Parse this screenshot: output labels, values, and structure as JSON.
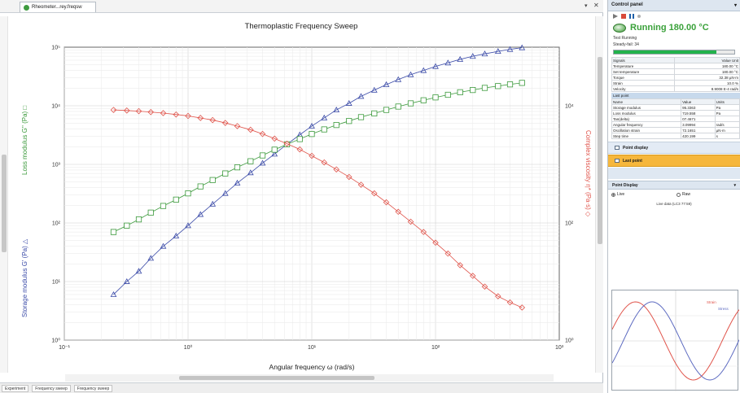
{
  "doc": {
    "tab_title": "Rheometer...rey.freqsw",
    "close_glyph": "✕",
    "pin_glyph": "▾",
    "sheet_tabs": [
      "Experiment",
      "Frequency sweep",
      "Frequency sweep"
    ]
  },
  "chart_data": {
    "type": "scatter",
    "title": "Thermoplastic Frequency Sweep",
    "xlabel": "Angular frequency ω (rad/s)",
    "y_left_label_storage": "Storage modulus G' (Pa) △",
    "y_left_label_loss": "Loss modulus G'' (Pa) □",
    "y_right_label": "Complex viscosity η* (Pa·s) ◇",
    "x_scale": "log",
    "y_scale": "log",
    "xlim": [
      0.1,
      1000
    ],
    "ylim_left": [
      1,
      100000
    ],
    "ylim_right": [
      1,
      100000
    ],
    "x_ticks": [
      "10⁻¹",
      "10⁰",
      "10¹",
      "10²",
      "10³"
    ],
    "y_left_ticks": [
      "10⁰",
      "10¹",
      "10²",
      "10³",
      "10⁴",
      "10⁵"
    ],
    "y_right_ticks": [
      "10⁰",
      "10²",
      "10⁴"
    ],
    "grid": true,
    "series": [
      {
        "id": "storage",
        "axis": "left",
        "marker": "triangle",
        "color": "#3b4ba8",
        "x": [
          0.25,
          0.32,
          0.4,
          0.5,
          0.63,
          0.8,
          1.0,
          1.26,
          1.58,
          2.0,
          2.5,
          3.2,
          4.0,
          5.0,
          6.3,
          8.0,
          10,
          12.6,
          15.8,
          20,
          25,
          32,
          40,
          50,
          63,
          80,
          100,
          126,
          158,
          200,
          250,
          320,
          400,
          500
        ],
        "y": [
          6,
          10,
          15,
          25,
          40,
          60,
          90,
          140,
          210,
          320,
          480,
          720,
          1050,
          1500,
          2200,
          3200,
          4500,
          6200,
          8500,
          11000,
          14500,
          18500,
          23000,
          28000,
          34000,
          40000,
          47000,
          54000,
          62000,
          70000,
          77000,
          85000,
          92000,
          98000
        ]
      },
      {
        "id": "loss",
        "axis": "left",
        "marker": "square",
        "color": "#3c9a3c",
        "x": [
          0.25,
          0.32,
          0.4,
          0.5,
          0.63,
          0.8,
          1.0,
          1.26,
          1.58,
          2.0,
          2.5,
          3.2,
          4.0,
          5.0,
          6.3,
          8.0,
          10,
          12.6,
          15.8,
          20,
          25,
          32,
          40,
          50,
          63,
          80,
          100,
          126,
          158,
          200,
          250,
          320,
          400,
          500
        ],
        "y": [
          70,
          90,
          115,
          150,
          195,
          250,
          320,
          420,
          540,
          700,
          890,
          1130,
          1420,
          1780,
          2200,
          2700,
          3300,
          3950,
          4700,
          5500,
          6400,
          7400,
          8500,
          9700,
          11000,
          12400,
          13900,
          15400,
          17000,
          18600,
          20200,
          21700,
          23200,
          24600
        ]
      },
      {
        "id": "complex_viscosity",
        "axis": "right",
        "marker": "diamond",
        "color": "#e0544b",
        "x": [
          0.25,
          0.32,
          0.4,
          0.5,
          0.63,
          0.8,
          1.0,
          1.26,
          1.58,
          2.0,
          2.5,
          3.2,
          4.0,
          5.0,
          6.3,
          8.0,
          10,
          12.6,
          15.8,
          20,
          25,
          32,
          40,
          50,
          63,
          80,
          100,
          126,
          158,
          200,
          250,
          320,
          400,
          500
        ],
        "y": [
          8500,
          8300,
          8100,
          7800,
          7500,
          7100,
          6700,
          6200,
          5700,
          5100,
          4500,
          3900,
          3300,
          2750,
          2250,
          1800,
          1400,
          1080,
          820,
          610,
          450,
          320,
          225,
          155,
          105,
          70,
          46,
          30,
          19,
          12.5,
          8.2,
          5.6,
          4.4,
          3.6
        ]
      }
    ]
  },
  "control_panel": {
    "title": "Control panel",
    "close_glyph": "▾",
    "status": "Running 180.00 °C",
    "test_line": "Test Running",
    "step_line": "Steady-fail: 34",
    "progress_fraction": 0.85,
    "signals_header": [
      "Signals",
      "Value",
      "Unit"
    ],
    "signals": [
      [
        "Temperature",
        "180.00 °C"
      ],
      [
        "Set temperature",
        "180.00 °C"
      ],
      [
        "Torque",
        "32.38 µN·m"
      ],
      [
        "Strain",
        "10.0 %"
      ],
      [
        "Velocity",
        "8.9008 E-4 rad/s"
      ]
    ],
    "last_point_title": "Last point",
    "last_point_header": [
      "Name",
      "Value",
      "Units"
    ],
    "last_point": [
      [
        "Storage modulus",
        "95.3363",
        "Pa"
      ],
      [
        "Loss modulus",
        "719.558",
        "Pa"
      ],
      [
        "Tan(delta)",
        "07.4671",
        ""
      ],
      [
        "Angular frequency",
        "3.09994",
        "rad/s"
      ],
      [
        "Oscillation strain",
        "72.1651",
        "µN·m"
      ],
      [
        "Step time",
        "420.199",
        "s"
      ]
    ],
    "band_point_display": "Point display",
    "band_last_point": "Last point",
    "point_display_title": "Point Display",
    "radio_live": "Live",
    "radio_raw": "Raw",
    "wave_caption": "Live data (LC3 77:59)",
    "wave_legend": [
      "Strain",
      "Stress"
    ],
    "wave_colors": [
      "#e0544b",
      "#5d6bc1"
    ]
  }
}
